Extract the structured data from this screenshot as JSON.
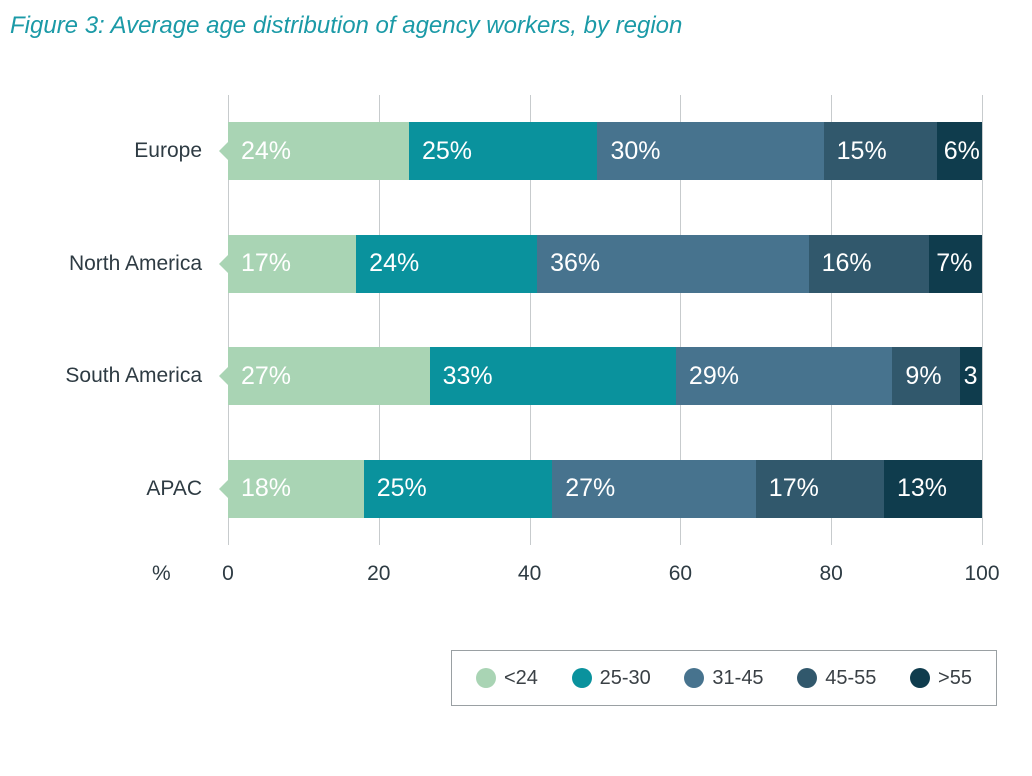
{
  "title": "Figure 3: Average age distribution of agency workers, by region",
  "chart_data": {
    "type": "bar",
    "orientation": "horizontal",
    "stacked": true,
    "title": "Figure 3: Average age distribution of agency workers, by region",
    "categories": [
      "Europe",
      "North America",
      "South America",
      "APAC"
    ],
    "series": [
      {
        "name": "<24",
        "color": "#a9d4b4",
        "values": [
          24,
          17,
          27,
          18
        ],
        "labels": [
          "24%",
          "17%",
          "27%",
          "18%"
        ]
      },
      {
        "name": "25-30",
        "color": "#0a929d",
        "values": [
          25,
          24,
          33,
          25
        ],
        "labels": [
          "25%",
          "24%",
          "33%",
          "25%"
        ]
      },
      {
        "name": "31-45",
        "color": "#47738e",
        "values": [
          30,
          36,
          29,
          27
        ],
        "labels": [
          "30%",
          "36%",
          "29%",
          "27%"
        ]
      },
      {
        "name": "45-55",
        "color": "#31586c",
        "values": [
          15,
          16,
          9,
          17
        ],
        "labels": [
          "15%",
          "16%",
          "9%",
          "17%"
        ]
      },
      {
        "name": ">55",
        "color": "#0f3c4d",
        "values": [
          6,
          7,
          3,
          13
        ],
        "labels": [
          "6%",
          "7%",
          "3",
          "13%"
        ]
      }
    ],
    "xlabel": "%",
    "x_ticks": [
      0,
      20,
      40,
      60,
      80,
      100
    ],
    "xlim": [
      0,
      100
    ],
    "grid": true,
    "legend_position": "bottom-right",
    "colors": {
      "title": "#1b9aa7",
      "axis_text": "#2e3b43",
      "gridline": "#c7cbcd",
      "segment_label": "#ffffff"
    }
  }
}
